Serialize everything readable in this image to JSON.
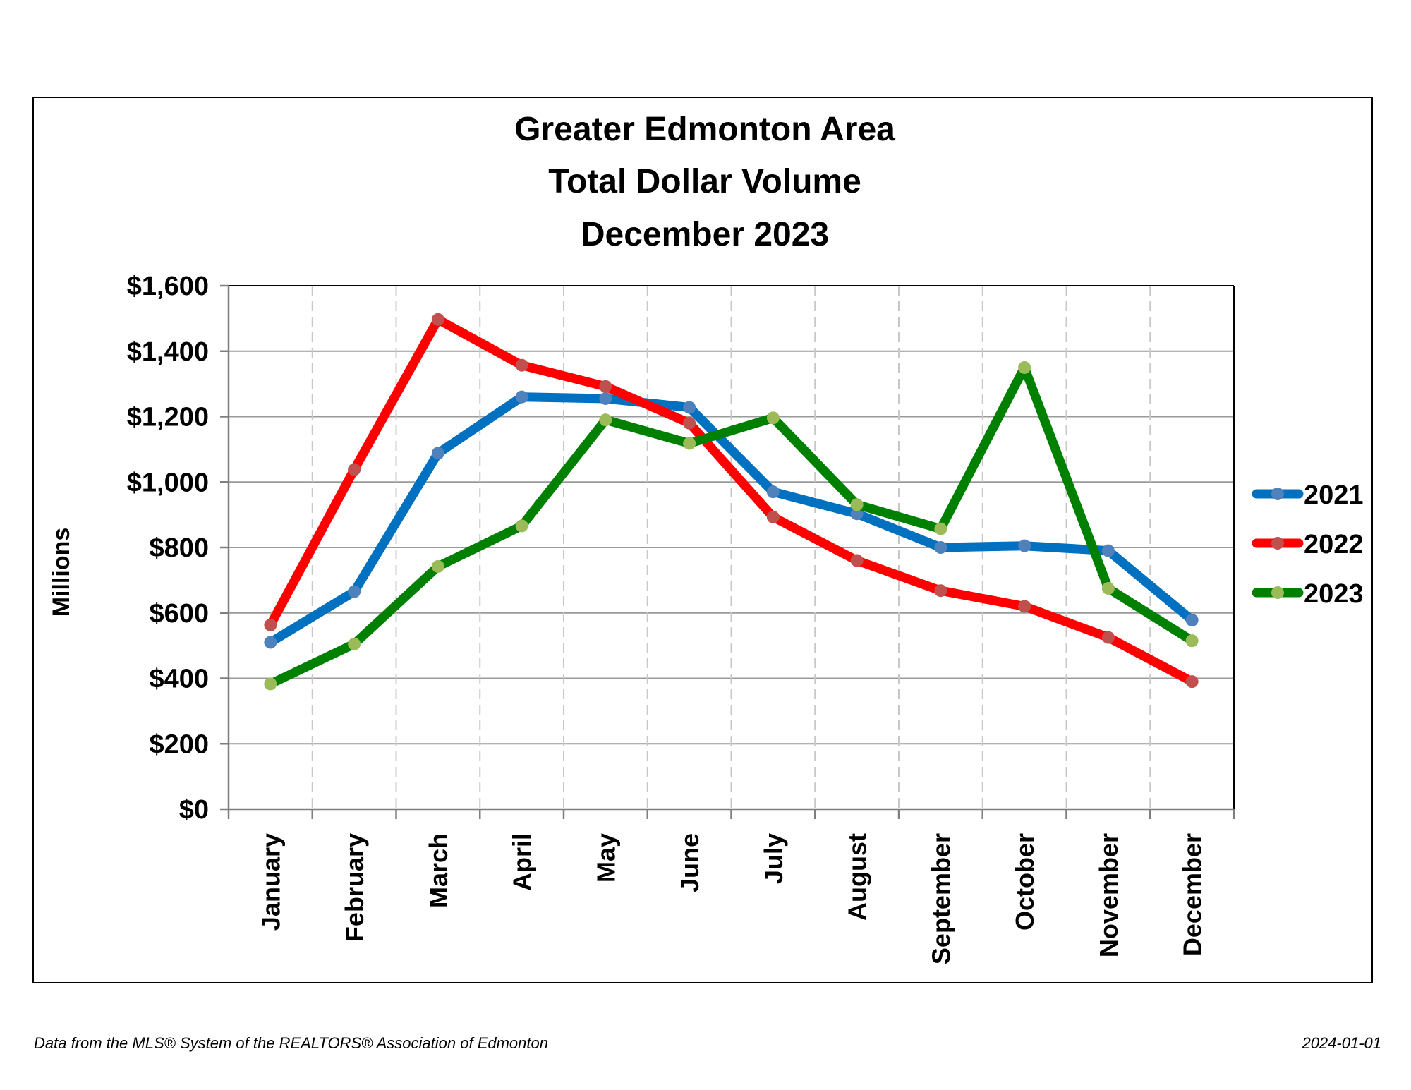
{
  "chart_data": {
    "type": "line",
    "title_lines": [
      "Greater Edmonton Area",
      "Total Dollar Volume",
      "December 2023"
    ],
    "ylabel": "Millions",
    "xlabel": "",
    "ylim": [
      0,
      1600
    ],
    "y_ticks": [
      0,
      200,
      400,
      600,
      800,
      1000,
      1200,
      1400,
      1600
    ],
    "y_tick_labels": [
      "$0",
      "$200",
      "$400",
      "$600",
      "$800",
      "$1,000",
      "$1,200",
      "$1,400",
      "$1,600"
    ],
    "categories": [
      "January",
      "February",
      "March",
      "April",
      "May",
      "June",
      "July",
      "August",
      "September",
      "October",
      "November",
      "December"
    ],
    "grid": {
      "horizontal": "solid",
      "vertical": "dashed"
    },
    "legend_position": "right",
    "series": [
      {
        "name": "2021",
        "line_color": "#0070C0",
        "marker_color": "#4F81BD",
        "values": [
          510,
          665,
          1088,
          1260,
          1255,
          1228,
          970,
          903,
          800,
          805,
          790,
          578
        ]
      },
      {
        "name": "2022",
        "line_color": "#FF0000",
        "marker_color": "#C0504D",
        "values": [
          563,
          1038,
          1497,
          1357,
          1292,
          1180,
          893,
          760,
          668,
          620,
          525,
          390
        ]
      },
      {
        "name": "2023",
        "line_color": "#008000",
        "marker_color": "#9BBB59",
        "values": [
          383,
          505,
          742,
          866,
          1190,
          1118,
          1196,
          931,
          857,
          1350,
          675,
          515
        ]
      }
    ]
  },
  "footer": {
    "source": "Data from the MLS® System of the REALTORS® Association of Edmonton",
    "date": "2024-01-01"
  }
}
